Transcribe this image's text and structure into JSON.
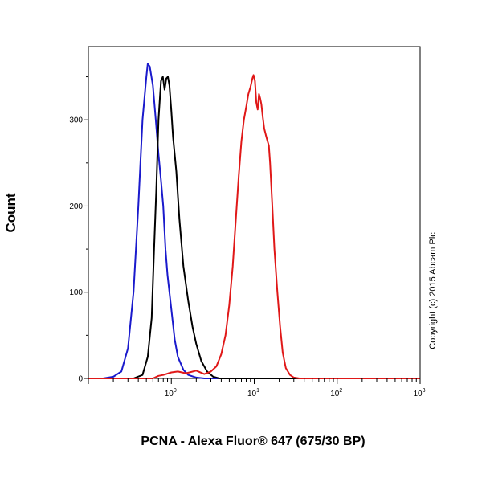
{
  "chart_data": {
    "type": "line",
    "title": "",
    "xlabel": "PCNA - Alexa Fluor® 647 (675/30 BP)",
    "ylabel": "Count",
    "x_scale": "log",
    "xlim": [
      0.1,
      1000
    ],
    "ylim": [
      0,
      385
    ],
    "grid": false,
    "y_ticks": [
      0,
      100,
      200,
      300
    ],
    "y_tick_labels": [
      "0",
      "100",
      "200",
      "300"
    ],
    "x_ticks": [
      1,
      10,
      100,
      1000
    ],
    "x_tick_labels": [
      {
        "base": "10",
        "exp": "0"
      },
      {
        "base": "10",
        "exp": "1"
      },
      {
        "base": "10",
        "exp": "2"
      },
      {
        "base": "10",
        "exp": "3"
      }
    ],
    "annotation": "Copyright (c) 2015 Abcam Plc",
    "series": [
      {
        "color": "#1a1acc",
        "points": [
          [
            0.1,
            0
          ],
          [
            0.15,
            0
          ],
          [
            0.2,
            2
          ],
          [
            0.25,
            8
          ],
          [
            0.3,
            35
          ],
          [
            0.35,
            100
          ],
          [
            0.4,
            200
          ],
          [
            0.45,
            300
          ],
          [
            0.5,
            350
          ],
          [
            0.52,
            365
          ],
          [
            0.55,
            362
          ],
          [
            0.6,
            340
          ],
          [
            0.65,
            300
          ],
          [
            0.7,
            260
          ],
          [
            0.75,
            230
          ],
          [
            0.8,
            200
          ],
          [
            0.85,
            150
          ],
          [
            0.9,
            120
          ],
          [
            1.0,
            80
          ],
          [
            1.1,
            45
          ],
          [
            1.2,
            25
          ],
          [
            1.4,
            10
          ],
          [
            1.6,
            4
          ],
          [
            2.0,
            1
          ],
          [
            2.5,
            0
          ],
          [
            1000,
            0
          ]
        ]
      },
      {
        "color": "#000000",
        "points": [
          [
            0.1,
            0
          ],
          [
            0.35,
            0
          ],
          [
            0.45,
            4
          ],
          [
            0.52,
            25
          ],
          [
            0.58,
            70
          ],
          [
            0.62,
            150
          ],
          [
            0.66,
            220
          ],
          [
            0.7,
            300
          ],
          [
            0.75,
            345
          ],
          [
            0.79,
            350
          ],
          [
            0.83,
            335
          ],
          [
            0.87,
            348
          ],
          [
            0.91,
            350
          ],
          [
            0.95,
            340
          ],
          [
            1.0,
            310
          ],
          [
            1.05,
            280
          ],
          [
            1.15,
            240
          ],
          [
            1.25,
            185
          ],
          [
            1.4,
            130
          ],
          [
            1.6,
            90
          ],
          [
            1.8,
            60
          ],
          [
            2.0,
            40
          ],
          [
            2.3,
            20
          ],
          [
            2.7,
            8
          ],
          [
            3.2,
            2
          ],
          [
            3.8,
            0
          ],
          [
            1000,
            0
          ]
        ]
      },
      {
        "color": "#e01818",
        "points": [
          [
            0.1,
            0
          ],
          [
            0.6,
            0
          ],
          [
            0.7,
            3
          ],
          [
            0.8,
            4
          ],
          [
            1.0,
            7
          ],
          [
            1.2,
            8
          ],
          [
            1.5,
            6
          ],
          [
            2.0,
            9
          ],
          [
            2.5,
            5
          ],
          [
            3.0,
            8
          ],
          [
            3.5,
            14
          ],
          [
            4.0,
            28
          ],
          [
            4.5,
            50
          ],
          [
            5.0,
            85
          ],
          [
            5.5,
            130
          ],
          [
            6.0,
            185
          ],
          [
            6.5,
            235
          ],
          [
            7.0,
            275
          ],
          [
            7.5,
            300
          ],
          [
            8.0,
            315
          ],
          [
            8.5,
            330
          ],
          [
            9.0,
            338
          ],
          [
            9.5,
            348
          ],
          [
            9.8,
            352
          ],
          [
            10.2,
            345
          ],
          [
            10.6,
            320
          ],
          [
            11.0,
            312
          ],
          [
            11.4,
            330
          ],
          [
            11.8,
            325
          ],
          [
            12.2,
            318
          ],
          [
            12.6,
            305
          ],
          [
            13.2,
            290
          ],
          [
            14.0,
            280
          ],
          [
            15.0,
            270
          ],
          [
            15.5,
            250
          ],
          [
            16.5,
            200
          ],
          [
            17.5,
            150
          ],
          [
            19.0,
            100
          ],
          [
            20.5,
            60
          ],
          [
            22.0,
            30
          ],
          [
            24.0,
            12
          ],
          [
            27.0,
            4
          ],
          [
            30.0,
            1
          ],
          [
            35.0,
            0
          ],
          [
            1000,
            0
          ]
        ]
      }
    ]
  }
}
